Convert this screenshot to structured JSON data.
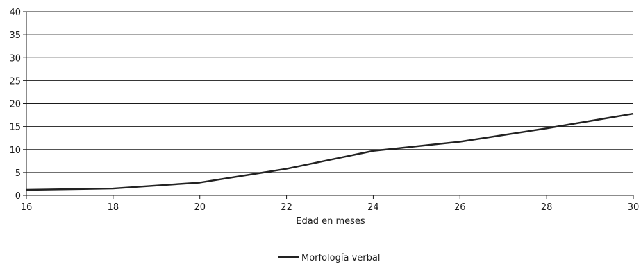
{
  "chart_data": {
    "type": "line",
    "title": "",
    "xlabel": "Edad en meses",
    "ylabel": "",
    "x": [
      16,
      18,
      20,
      22,
      24,
      26,
      28,
      30
    ],
    "series": [
      {
        "name": "Morfología verbal",
        "values": [
          1.2,
          1.5,
          2.8,
          5.8,
          9.7,
          11.7,
          14.6,
          17.8
        ]
      }
    ],
    "xlim": [
      16,
      30
    ],
    "ylim": [
      0,
      40
    ],
    "xticks": [
      "16",
      "18",
      "20",
      "22",
      "24",
      "26",
      "28",
      "30"
    ],
    "yticks": [
      "0",
      "5",
      "10",
      "15",
      "20",
      "25",
      "30",
      "35",
      "40"
    ],
    "grid": "horizontal",
    "legend_position": "bottom",
    "colors": {
      "line": "#222222",
      "grid": "#1a1a1a",
      "axis": "#1a1a1a"
    }
  }
}
